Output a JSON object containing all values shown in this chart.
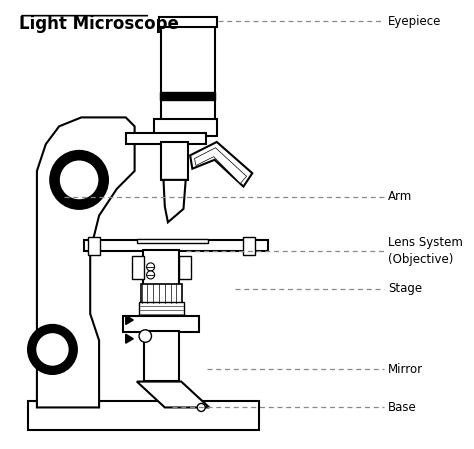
{
  "title": "Light Microscope",
  "background_color": "#ffffff",
  "line_color": "#000000",
  "label_color": "#000000",
  "dashed_line_color": "#888888",
  "labels": {
    "eyepiece": "Eyepiece",
    "arm": "Arm",
    "lens_system": "Lens System\n(Objective)",
    "stage": "Stage",
    "mirror": "Mirror",
    "base": "Base"
  },
  "figsize": [
    4.74,
    4.49
  ],
  "dpi": 100
}
